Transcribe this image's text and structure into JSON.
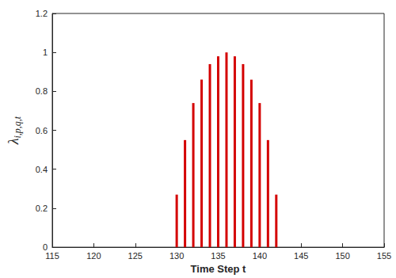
{
  "chart_data": {
    "type": "stem",
    "xlabel": "Time Step t",
    "ylabel": "λi,p,q,t",
    "x": [
      130,
      131,
      132,
      133,
      134,
      135,
      136,
      137,
      138,
      139,
      140,
      141,
      142
    ],
    "values": [
      0.27,
      0.55,
      0.74,
      0.86,
      0.94,
      0.98,
      1.0,
      0.98,
      0.94,
      0.86,
      0.74,
      0.55,
      0.27
    ],
    "color": "#d40000",
    "xlim": [
      115,
      155
    ],
    "xticks": [
      115,
      120,
      125,
      130,
      135,
      140,
      145,
      150,
      155
    ],
    "ylim": [
      0,
      1.2
    ],
    "yticks": [
      0,
      0.2,
      0.4,
      0.6,
      0.8,
      1,
      1.2
    ],
    "grid": false
  }
}
